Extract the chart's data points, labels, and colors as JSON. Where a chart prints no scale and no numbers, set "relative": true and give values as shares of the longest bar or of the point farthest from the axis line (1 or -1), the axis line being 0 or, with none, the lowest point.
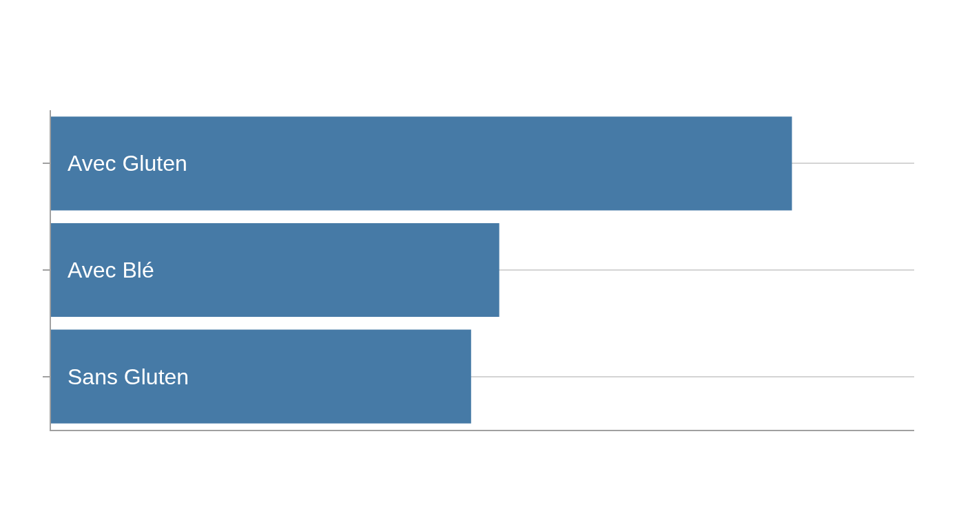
{
  "chart_data": {
    "type": "bar",
    "orientation": "horizontal",
    "relative": true,
    "categories": [
      "Avec Gluten",
      "Avec Blé",
      "Sans Gluten"
    ],
    "values": [
      1,
      0.605,
      0.567
    ],
    "color": "#467aa6",
    "grid": "y",
    "tick_labels": false,
    "legend": false
  }
}
